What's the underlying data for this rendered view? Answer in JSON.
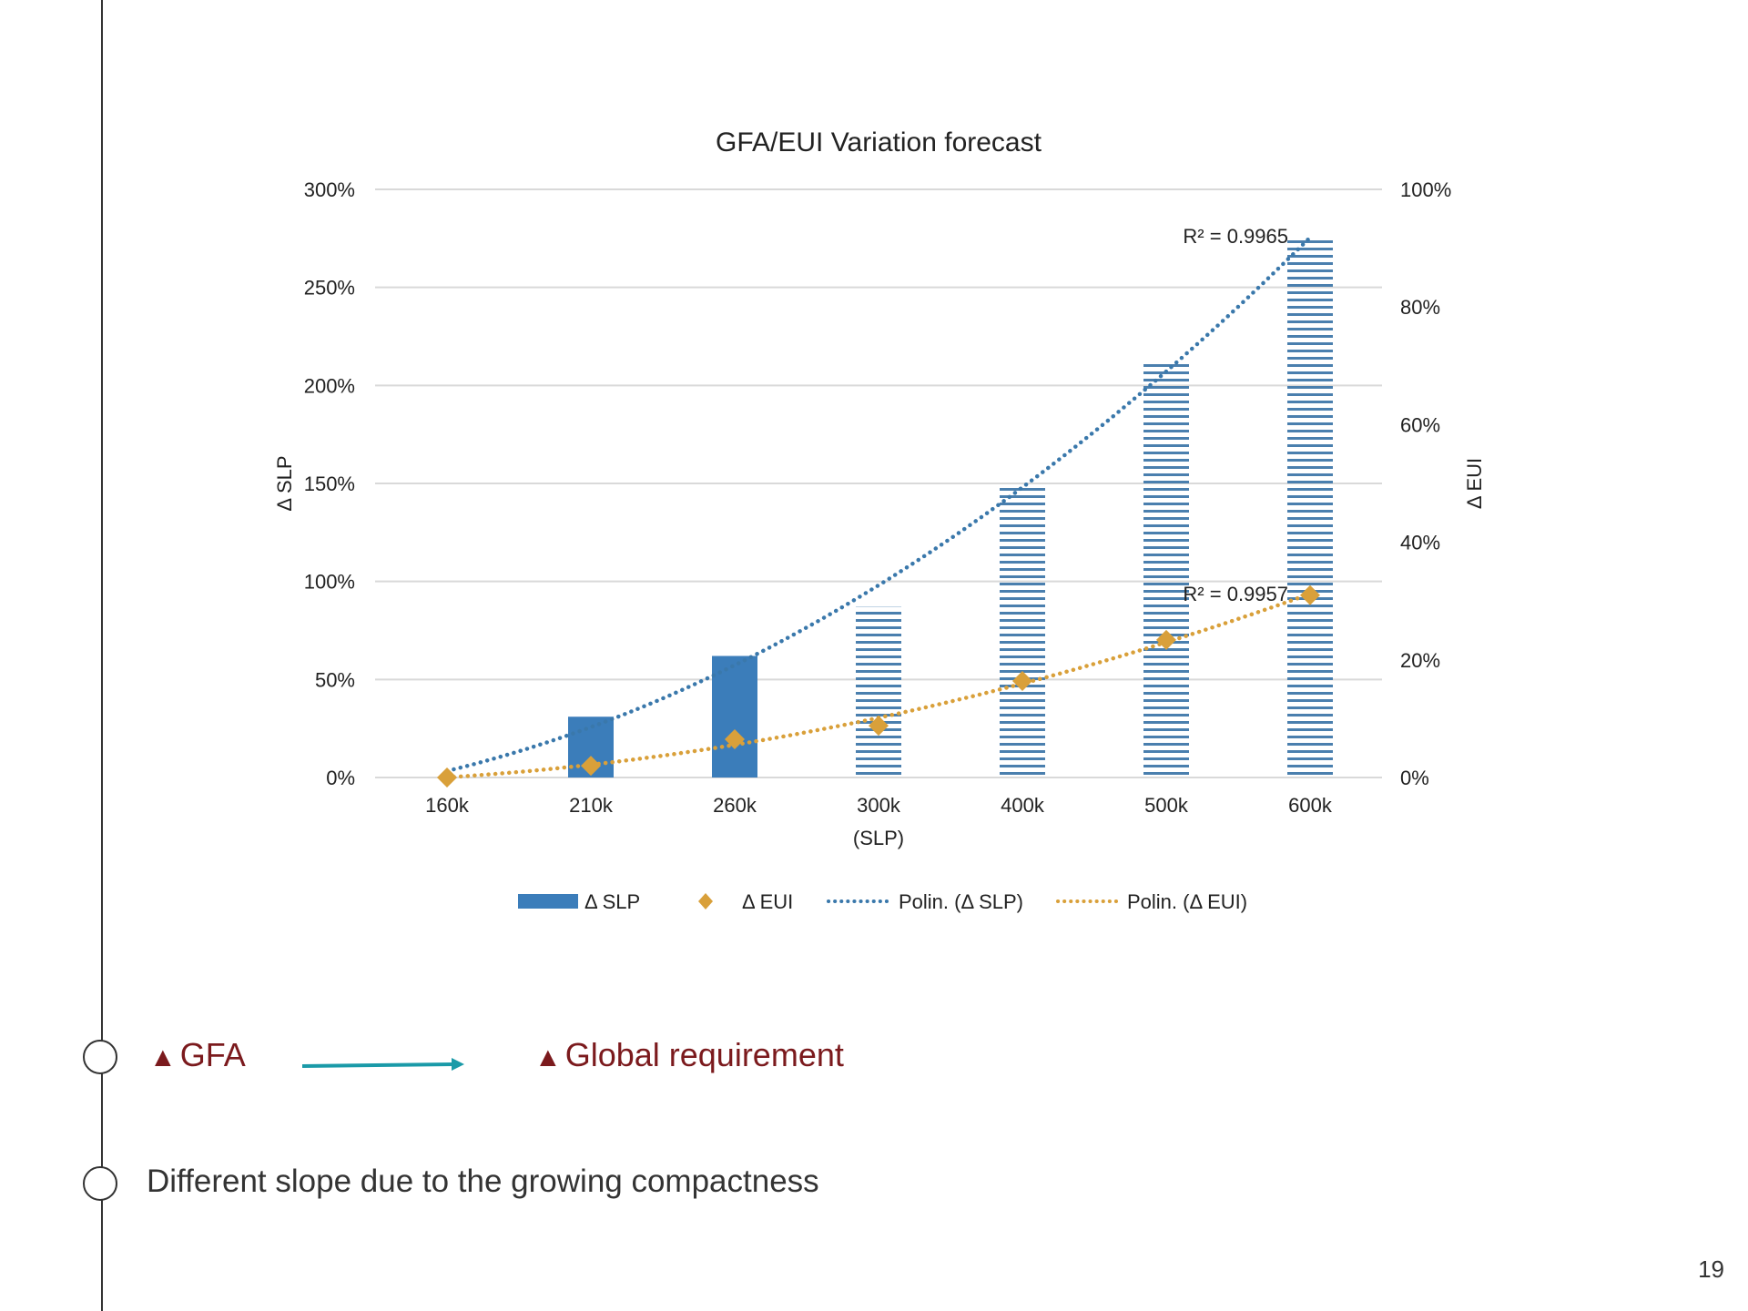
{
  "page": {
    "page_number": "19",
    "bullets": [
      {
        "left_text": "GFA",
        "right_text": "Global requirement",
        "marker": "triangle-up-icon",
        "arrow": "arrow-right-icon"
      },
      {
        "text": "Different slope due to the growing compactness"
      }
    ],
    "colors": {
      "accent_red": "#7b1a1d",
      "arrow_teal": "#1a9aa8"
    }
  },
  "chart_data": {
    "type": "bar",
    "title": "GFA/EUI Variation forecast",
    "xlabel": "(SLP)",
    "ylabel": "Δ SLP",
    "y2label": "Δ EUI",
    "categories": [
      "160k",
      "210k",
      "260k",
      "300k",
      "400k",
      "500k",
      "600k"
    ],
    "ylim": [
      0,
      300
    ],
    "y2lim": [
      0,
      100
    ],
    "yticks": [
      "0%",
      "50%",
      "100%",
      "150%",
      "200%",
      "250%",
      "300%"
    ],
    "y2ticks": [
      "0%",
      "20%",
      "40%",
      "60%",
      "80%",
      "100%"
    ],
    "grid": true,
    "legend_position": "bottom",
    "series": [
      {
        "name": "Δ SLP",
        "kind": "bar",
        "axis": "left",
        "color": "#3b7dba",
        "values": [
          0,
          31,
          62,
          87,
          150,
          211,
          274
        ],
        "style": [
          "solid",
          "solid",
          "solid",
          "hatched",
          "hatched",
          "hatched",
          "hatched"
        ]
      },
      {
        "name": "Δ EUI",
        "kind": "marker",
        "axis": "right",
        "color": "#d9a03a",
        "values": [
          0,
          2,
          6.5,
          8.8,
          16.4,
          23.4,
          31
        ]
      },
      {
        "name": "Polin. (Δ SLP)",
        "kind": "trendline",
        "axis": "left",
        "color": "#3a78ab",
        "r2_label": "R² = 0.9965"
      },
      {
        "name": "Polin. (Δ EUI)",
        "kind": "trendline",
        "axis": "right",
        "color": "#d9a03a",
        "r2_label": "R² = 0.9957"
      }
    ]
  }
}
